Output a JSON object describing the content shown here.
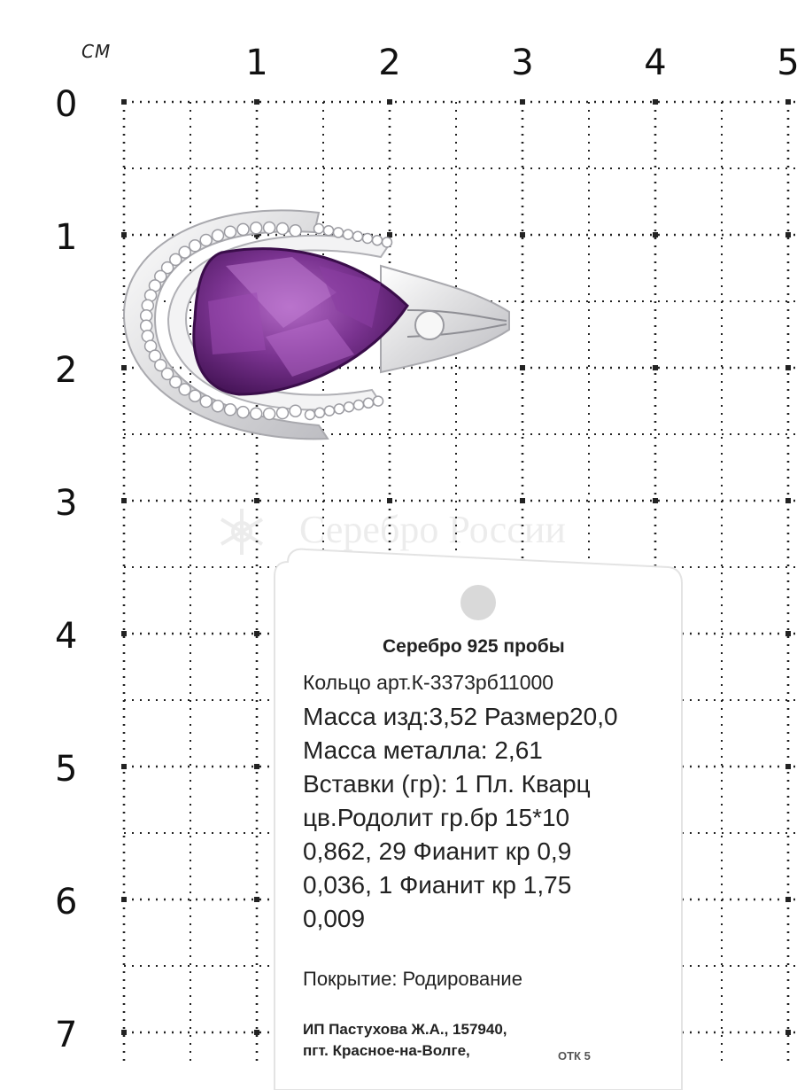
{
  "ruler": {
    "unit": "СМ",
    "x_labels": [
      "1",
      "2",
      "3",
      "4",
      "5"
    ],
    "y_labels": [
      "0",
      "1",
      "2",
      "3",
      "4",
      "5",
      "6",
      "7"
    ]
  },
  "watermark": {
    "text": "Серебро России"
  },
  "tag": {
    "heading": "Серебро 925 пробы",
    "article": "Кольцо арт.К-3373рб11000",
    "lines": [
      "Масса изд:3,52 Размер20,0",
      "Масса металла: 2,61",
      "Вставки (гр): 1 Пл. Кварц",
      "цв.Родолит гр.бр  15*10",
      "0,862, 29 Фианит кр 0,9",
      "0,036, 1 Фианит кр 1,75",
      "0,009"
    ],
    "coating": "Покрытие: Родирование",
    "maker_line1": "ИП Пастухова Ж.А., 157940,",
    "maker_line2": "пгт. Красное-на-Волге,",
    "maker_suffix": "ОТК 5"
  },
  "colors": {
    "stone": "#6b2a7e",
    "stone_light": "#a45bb8",
    "metal": "#e9e9ea",
    "grid_dot": "#222222"
  }
}
